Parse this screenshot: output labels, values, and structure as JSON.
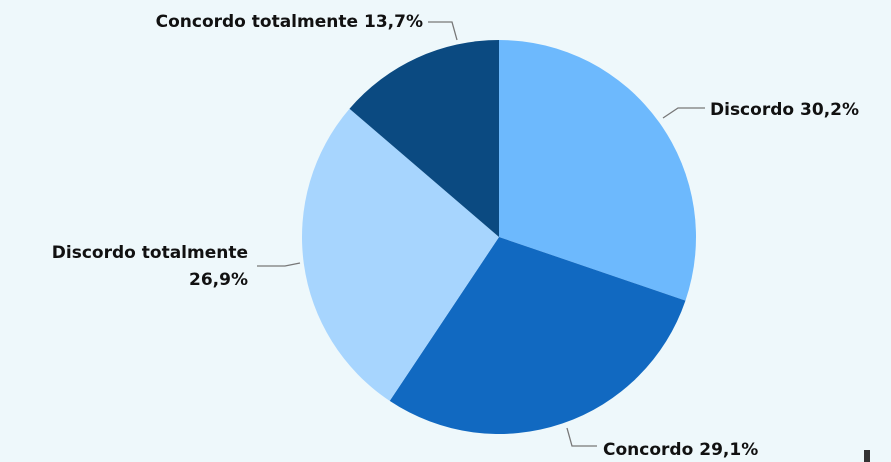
{
  "chart_data": {
    "type": "pie",
    "categories": [
      "Discordo",
      "Concordo",
      "Discordo totalmente",
      "Concordo totalmente"
    ],
    "values": [
      30.2,
      29.1,
      26.9,
      13.7
    ],
    "value_labels": [
      "30,2%",
      "29,1%",
      "26,9%",
      "13,7%"
    ],
    "colors": [
      "#6db9fd",
      "#1169c1",
      "#a7d5fe",
      "#0b4a81"
    ]
  }
}
